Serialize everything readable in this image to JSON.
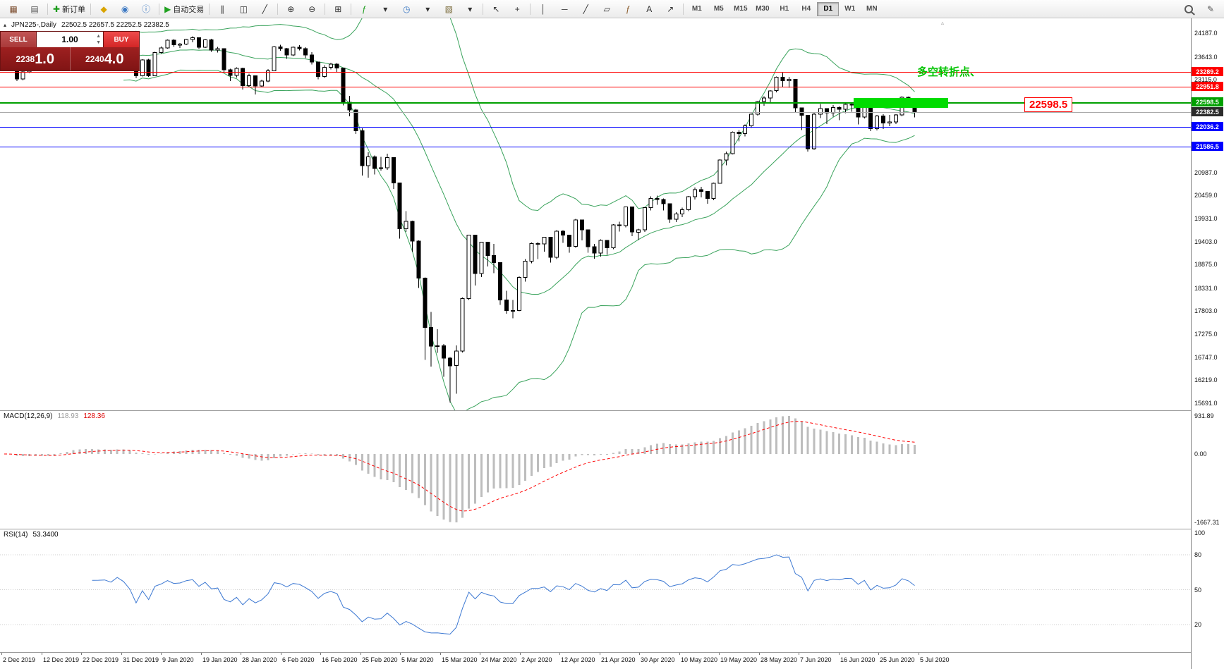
{
  "colors": {
    "up_candle": "#ffffff",
    "down_candle": "#000000",
    "candle_border": "#000000",
    "bollinger": "#3aa35c",
    "macd_hist": "#bdbdbd",
    "macd_signal": "#ff0000",
    "macd_value": "#9a9a9a",
    "macd_signal_value": "#dd0000",
    "rsi_line": "#3c78d2",
    "annotation_green": "#00c300",
    "annotation_red": "#ff0000",
    "highlight_rect": "#00dc00",
    "current_price_tag_bg": "#2b2b2b"
  },
  "toolbar": {
    "items": [
      {
        "name": "new-chart-icon",
        "glyph": "▦",
        "color": "#7a4a2b"
      },
      {
        "name": "profiles-icon",
        "glyph": "▤",
        "color": "#555555"
      },
      {
        "sep": true
      },
      {
        "name": "new-order-button",
        "glyph": "✚",
        "color": "#1a9c1a",
        "label": "新订单"
      },
      {
        "sep": true
      },
      {
        "name": "metaeditor-icon",
        "glyph": "◆",
        "color": "#d9a400"
      },
      {
        "name": "market-icon",
        "glyph": "◉",
        "color": "#3b78c3"
      },
      {
        "name": "info-icon",
        "glyph": "ⓘ",
        "color": "#3b78c3"
      },
      {
        "sep": true
      },
      {
        "name": "autotrading-button",
        "glyph": "▶",
        "color": "#1fa11f",
        "label": "自动交易"
      },
      {
        "sep": true
      },
      {
        "name": "bar-chart-icon",
        "glyph": "∥",
        "color": "#333333"
      },
      {
        "name": "candlestick-chart-icon",
        "glyph": "◫",
        "color": "#333333"
      },
      {
        "name": "line-chart-icon",
        "glyph": "╱",
        "color": "#333333"
      },
      {
        "sep": true
      },
      {
        "name": "zoom-in-icon",
        "glyph": "⊕",
        "color": "#333333"
      },
      {
        "name": "zoom-out-icon",
        "glyph": "⊖",
        "color": "#333333"
      },
      {
        "sep": true
      },
      {
        "name": "tile-windows-icon",
        "glyph": "⊞",
        "color": "#333333"
      },
      {
        "sep": true
      },
      {
        "name": "indicators-icon",
        "glyph": "ƒ",
        "color": "#1a9c1a"
      },
      {
        "name": "indicators-dropdown",
        "glyph": "▾",
        "color": "#333333"
      },
      {
        "name": "periods-icon",
        "glyph": "◷",
        "color": "#3b78c3"
      },
      {
        "name": "periods-dropdown",
        "glyph": "▾",
        "color": "#333333"
      },
      {
        "name": "templates-icon",
        "glyph": "▧",
        "color": "#7a6a3a"
      },
      {
        "name": "templates-dropdown",
        "glyph": "▾",
        "color": "#333333"
      },
      {
        "sep": true
      },
      {
        "name": "cursor-icon",
        "glyph": "↖",
        "color": "#333333"
      },
      {
        "name": "crosshair-icon",
        "glyph": "+",
        "color": "#333333"
      },
      {
        "sep": true
      },
      {
        "name": "vertical-line-icon",
        "glyph": "│",
        "color": "#333333"
      },
      {
        "name": "horizontal-line-icon",
        "glyph": "─",
        "color": "#333333"
      },
      {
        "name": "trendline-icon",
        "glyph": "╱",
        "color": "#333333"
      },
      {
        "name": "channel-icon",
        "glyph": "▱",
        "color": "#333333"
      },
      {
        "name": "fibonacci-icon",
        "glyph": "ƒ",
        "color": "#8a5a2a"
      },
      {
        "name": "text-label-icon",
        "glyph": "A",
        "color": "#333333"
      },
      {
        "name": "arrows-icon",
        "glyph": "↗",
        "color": "#333333"
      },
      {
        "sep": true
      }
    ],
    "timeframes": [
      "M1",
      "M5",
      "M15",
      "M30",
      "H1",
      "H4",
      "D1",
      "W1",
      "MN"
    ],
    "active_timeframe": "D1",
    "right_items": [
      {
        "name": "search-icon",
        "css": "mag"
      },
      {
        "name": "draw-icon",
        "glyph": "✎",
        "color": "#555555"
      }
    ]
  },
  "chart": {
    "collapse_arrow": "▴",
    "title": "JPN225-,Daily",
    "ohlc": "22502.5 22657.5 22252.5 22382.5",
    "annotation_text": "多空转折点、",
    "annotation_label": "22598.5",
    "scroll_marker": "▵",
    "trade_panel": {
      "sell_label": "SELL",
      "buy_label": "BUY",
      "volume": "1.00",
      "spin_up": "▲",
      "spin_down": "▼",
      "sell_price_small": "2238",
      "sell_price_big": "1.0",
      "buy_price_small": "2240",
      "buy_price_big": "4.0"
    }
  },
  "chart_data": {
    "type": "candlestick",
    "symbol": "JPN225-",
    "timeframe": "Daily",
    "last_bar": {
      "open": 22502.5,
      "high": 22657.5,
      "low": 22252.5,
      "close": 22382.5
    },
    "y_axis_labels": [
      "24187.0",
      "23643.0",
      "23115.0",
      "20987.0",
      "20459.0",
      "19931.0",
      "19403.0",
      "18875.0",
      "18331.0",
      "17803.0",
      "17275.0",
      "16747.0",
      "16219.0",
      "15691.0"
    ],
    "x_labels": [
      "2 Dec 2019",
      "12 Dec 2019",
      "22 Dec 2019",
      "31 Dec 2019",
      "9 Jan 2020",
      "19 Jan 2020",
      "28 Jan 2020",
      "6 Feb 2020",
      "16 Feb 2020",
      "25 Feb 2020",
      "5 Mar 2020",
      "15 Mar 2020",
      "24 Mar 2020",
      "2 Apr 2020",
      "12 Apr 2020",
      "21 Apr 2020",
      "30 Apr 2020",
      "10 May 2020",
      "19 May 2020",
      "28 May 2020",
      "7 Jun 2020",
      "16 Jun 2020",
      "25 Jun 2020",
      "5 Jul 2020"
    ],
    "hlines": [
      {
        "price": 23289.2,
        "label": "23289.2",
        "color": "#ff0000",
        "thickness": 1
      },
      {
        "price": 22951.8,
        "label": "22951.8",
        "color": "#ff0000",
        "thickness": 1
      },
      {
        "price": 22598.5,
        "label": "22598.5",
        "color": "#00a000",
        "thickness": 2
      },
      {
        "price": 22382.5,
        "label": "22382.5",
        "color": "#aaaaaa",
        "thickness": 1,
        "tag_bg": "#2b2b2b"
      },
      {
        "price": 22036.2,
        "label": "22036.2",
        "color": "#0000ff",
        "thickness": 1
      },
      {
        "price": 21586.5,
        "label": "21586.5",
        "color": "#0000ff",
        "thickness": 1
      }
    ],
    "indicators": {
      "bollinger": {
        "period": 20,
        "deviation": 2
      },
      "macd": {
        "label": "MACD(12,26,9)",
        "value": "118.93",
        "signal_value": "128.36",
        "scale_labels": [
          "931.89",
          "0.00",
          "-1667.31"
        ]
      },
      "rsi": {
        "label": "RSI(14)",
        "value": "53.3400",
        "scale_values": [
          100,
          80,
          50,
          20
        ]
      }
    },
    "candles": [
      [
        23400,
        23560,
        23380,
        23530
      ],
      [
        23530,
        23560,
        23330,
        23380
      ],
      [
        23380,
        23390,
        23085,
        23135
      ],
      [
        23135,
        23320,
        23100,
        23300
      ],
      [
        23300,
        23390,
        23270,
        23354
      ],
      [
        23354,
        23450,
        23310,
        23430
      ],
      [
        23430,
        23465,
        23360,
        23410
      ],
      [
        23410,
        23450,
        23340,
        23391
      ],
      [
        23391,
        23470,
        23350,
        23424
      ],
      [
        23424,
        24050,
        23410,
        24023
      ],
      [
        24023,
        24060,
        23880,
        23952
      ],
      [
        23952,
        24091,
        23920,
        24066
      ],
      [
        24066,
        24080,
        23880,
        23934
      ],
      [
        23934,
        23980,
        23820,
        23865
      ],
      [
        23865,
        23900,
        23780,
        23817
      ],
      [
        23817,
        23860,
        23760,
        23821
      ],
      [
        23821,
        23880,
        23790,
        23830
      ],
      [
        23830,
        23860,
        23720,
        23782
      ],
      [
        23782,
        23950,
        23770,
        23925
      ],
      [
        23925,
        23940,
        23800,
        23838
      ],
      [
        23838,
        23870,
        23620,
        23657
      ],
      [
        23657,
        23680,
        23150,
        23205
      ],
      [
        23205,
        23590,
        23190,
        23575
      ],
      [
        23575,
        23600,
        23180,
        23204
      ],
      [
        23204,
        23760,
        23200,
        23740
      ],
      [
        23740,
        23880,
        23720,
        23851
      ],
      [
        23851,
        24040,
        23830,
        24025
      ],
      [
        24025,
        24050,
        23870,
        23916
      ],
      [
        23916,
        23960,
        23850,
        23933
      ],
      [
        23933,
        24060,
        23910,
        24041
      ],
      [
        24041,
        24115,
        23980,
        24084
      ],
      [
        24084,
        24090,
        23820,
        23864
      ],
      [
        23864,
        24050,
        23850,
        24031
      ],
      [
        24031,
        24060,
        23760,
        23795
      ],
      [
        23795,
        23870,
        23740,
        23827
      ],
      [
        23827,
        23830,
        23300,
        23344
      ],
      [
        23344,
        23370,
        23090,
        23216
      ],
      [
        23216,
        23400,
        23170,
        23379
      ],
      [
        23379,
        23390,
        22890,
        22978
      ],
      [
        22978,
        23260,
        22950,
        23205
      ],
      [
        23205,
        23210,
        22780,
        22972
      ],
      [
        22972,
        23120,
        22940,
        23084
      ],
      [
        23084,
        23360,
        23060,
        23320
      ],
      [
        23320,
        23890,
        23310,
        23874
      ],
      [
        23874,
        23920,
        23780,
        23828
      ],
      [
        23828,
        23850,
        23600,
        23686
      ],
      [
        23686,
        23880,
        23660,
        23861
      ],
      [
        23861,
        23910,
        23790,
        23828
      ],
      [
        23828,
        23860,
        23610,
        23688
      ],
      [
        23688,
        23750,
        23470,
        23523
      ],
      [
        23523,
        23530,
        23130,
        23194
      ],
      [
        23194,
        23450,
        23160,
        23401
      ],
      [
        23401,
        23510,
        23350,
        23479
      ],
      [
        23479,
        23500,
        23290,
        23387
      ],
      [
        23387,
        23390,
        22530,
        22605
      ],
      [
        22605,
        22750,
        22280,
        22426
      ],
      [
        22426,
        22450,
        21870,
        21948
      ],
      [
        21948,
        22000,
        20920,
        21143
      ],
      [
        21143,
        21450,
        20870,
        21344
      ],
      [
        21344,
        21380,
        20940,
        21083
      ],
      [
        21083,
        21350,
        21030,
        21100
      ],
      [
        21100,
        21420,
        21050,
        21329
      ],
      [
        21329,
        21340,
        20610,
        20750
      ],
      [
        20750,
        20760,
        19470,
        19699
      ],
      [
        19699,
        20100,
        19620,
        19867
      ],
      [
        19867,
        19880,
        19170,
        19416
      ],
      [
        19416,
        19430,
        18340,
        18560
      ],
      [
        18560,
        18580,
        16690,
        17431
      ],
      [
        17431,
        17790,
        16530,
        17002
      ],
      [
        17002,
        17390,
        16850,
        17012
      ],
      [
        17012,
        17050,
        16300,
        16727
      ],
      [
        16727,
        16750,
        15705,
        16553
      ],
      [
        16553,
        17020,
        15910,
        16888
      ],
      [
        16888,
        18120,
        16860,
        18092
      ],
      [
        18092,
        19560,
        18060,
        19547
      ],
      [
        19547,
        19560,
        18390,
        18665
      ],
      [
        18665,
        19400,
        18590,
        19389
      ],
      [
        19389,
        19400,
        18830,
        19085
      ],
      [
        19085,
        19350,
        18680,
        18917
      ],
      [
        18917,
        18930,
        17950,
        18065
      ],
      [
        18065,
        18270,
        17750,
        17818
      ],
      [
        17818,
        18060,
        17640,
        17820
      ],
      [
        17820,
        18600,
        17800,
        18576
      ],
      [
        18576,
        19000,
        18480,
        18950
      ],
      [
        18950,
        19380,
        18900,
        19353
      ],
      [
        19353,
        19390,
        19000,
        19346
      ],
      [
        19346,
        19510,
        19170,
        19499
      ],
      [
        19499,
        19500,
        18920,
        19043
      ],
      [
        19043,
        19660,
        19000,
        19638
      ],
      [
        19638,
        19660,
        19370,
        19550
      ],
      [
        19550,
        19560,
        19150,
        19290
      ],
      [
        19290,
        19920,
        19260,
        19897
      ],
      [
        19897,
        19900,
        19430,
        19669
      ],
      [
        19669,
        19680,
        19150,
        19281
      ],
      [
        19281,
        19350,
        19010,
        19137
      ],
      [
        19137,
        19450,
        19060,
        19429
      ],
      [
        19429,
        19440,
        19100,
        19262
      ],
      [
        19262,
        19800,
        19230,
        19783
      ],
      [
        19783,
        19860,
        19630,
        19771
      ],
      [
        19771,
        20210,
        19730,
        20194
      ],
      [
        20194,
        20200,
        19530,
        19619
      ],
      [
        19619,
        19700,
        19440,
        19675
      ],
      [
        19675,
        20190,
        19620,
        20179
      ],
      [
        20179,
        20440,
        20120,
        20391
      ],
      [
        20391,
        20460,
        20250,
        20366
      ],
      [
        20366,
        20390,
        20120,
        20267
      ],
      [
        20267,
        20280,
        19830,
        19914
      ],
      [
        19914,
        20080,
        19850,
        20037
      ],
      [
        20037,
        20180,
        19960,
        20134
      ],
      [
        20134,
        20450,
        20100,
        20433
      ],
      [
        20433,
        20640,
        20370,
        20595
      ],
      [
        20595,
        20660,
        20420,
        20552
      ],
      [
        20552,
        20560,
        20270,
        20388
      ],
      [
        20388,
        20760,
        20350,
        20741
      ],
      [
        20741,
        21290,
        20730,
        21271
      ],
      [
        21271,
        21470,
        21150,
        21419
      ],
      [
        21419,
        21930,
        21400,
        21916
      ],
      [
        21916,
        21960,
        21700,
        21878
      ],
      [
        21878,
        22090,
        21820,
        22062
      ],
      [
        22062,
        22340,
        22010,
        22326
      ],
      [
        22326,
        22630,
        22290,
        22614
      ],
      [
        22614,
        22740,
        22520,
        22696
      ],
      [
        22696,
        22880,
        22580,
        22864
      ],
      [
        22864,
        23190,
        22830,
        23178
      ],
      [
        23178,
        23280,
        22960,
        23091
      ],
      [
        23091,
        23185,
        22930,
        23125
      ],
      [
        23125,
        23130,
        22360,
        22473
      ],
      [
        22473,
        22480,
        21960,
        22305
      ],
      [
        22305,
        22310,
        21470,
        21531
      ],
      [
        21531,
        22360,
        21510,
        22326
      ],
      [
        22326,
        22560,
        22240,
        22456
      ],
      [
        22456,
        22460,
        22100,
        22355
      ],
      [
        22355,
        22540,
        22270,
        22479
      ],
      [
        22479,
        22500,
        22190,
        22437
      ],
      [
        22437,
        22580,
        22350,
        22549
      ],
      [
        22549,
        22600,
        22380,
        22534
      ],
      [
        22534,
        22540,
        22090,
        22260
      ],
      [
        22260,
        22540,
        22230,
        22512
      ],
      [
        22512,
        22520,
        21940,
        21995
      ],
      [
        21995,
        22310,
        21950,
        22288
      ],
      [
        22288,
        22330,
        21990,
        22122
      ],
      [
        22122,
        22310,
        22050,
        22146
      ],
      [
        22146,
        22330,
        22100,
        22306
      ],
      [
        22306,
        22740,
        22280,
        22714
      ],
      [
        22714,
        22730,
        22480,
        22614
      ],
      [
        22502.5,
        22657.5,
        22252.5,
        22382.5
      ]
    ]
  }
}
